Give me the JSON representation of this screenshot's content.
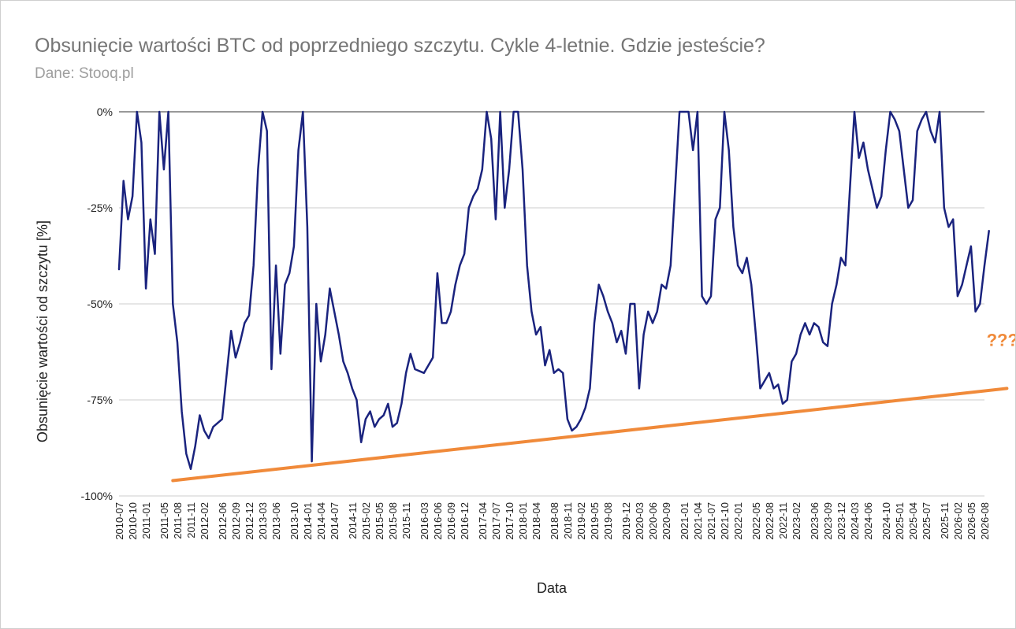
{
  "chart_data": {
    "type": "line",
    "title": "Obsunięcie wartości BTC od poprzedniego szczytu. Cykle 4-letnie. Gdzie jesteście?",
    "subtitle": "Dane: Stooq.pl",
    "xlabel": "Data",
    "ylabel": "Obsunięcie wartości od szczytu [%]",
    "ylim": [
      -100,
      0
    ],
    "y_ticks": [
      {
        "value": 0,
        "label": "0%"
      },
      {
        "value": -25,
        "label": "-25%"
      },
      {
        "value": -50,
        "label": "-50%"
      },
      {
        "value": -75,
        "label": "-75%"
      },
      {
        "value": -100,
        "label": "-100%"
      }
    ],
    "x_ticks": [
      "2010-07",
      "2010-10",
      "2011-01",
      "2011-05",
      "2011-08",
      "2011-11",
      "2012-02",
      "2012-06",
      "2012-09",
      "2012-12",
      "2013-03",
      "2013-06",
      "2013-10",
      "2014-01",
      "2014-04",
      "2014-07",
      "2014-11",
      "2015-02",
      "2015-05",
      "2015-08",
      "2015-11",
      "2016-03",
      "2016-06",
      "2016-09",
      "2016-12",
      "2017-04",
      "2017-07",
      "2017-10",
      "2018-01",
      "2018-04",
      "2018-08",
      "2018-11",
      "2019-02",
      "2019-05",
      "2019-08",
      "2019-12",
      "2020-03",
      "2020-06",
      "2020-09",
      "2021-01",
      "2021-04",
      "2021-07",
      "2021-10",
      "2022-01",
      "2022-05",
      "2022-08",
      "2022-11",
      "2023-02",
      "2023-06",
      "2023-09",
      "2023-12",
      "2024-03",
      "2024-06",
      "2024-10",
      "2025-01",
      "2025-04",
      "2025-07",
      "2025-11",
      "2026-02",
      "2026-05",
      "2026-08"
    ],
    "grid": true,
    "legend": "none",
    "series": [
      {
        "color": "#1a237e",
        "points": [
          [
            "2010-07",
            -41
          ],
          [
            "2010-08",
            -18
          ],
          [
            "2010-09",
            -28
          ],
          [
            "2010-10",
            -22
          ],
          [
            "2010-11",
            0
          ],
          [
            "2010-12",
            -8
          ],
          [
            "2011-01",
            -46
          ],
          [
            "2011-02",
            -28
          ],
          [
            "2011-03",
            -37
          ],
          [
            "2011-04",
            0
          ],
          [
            "2011-05",
            -15
          ],
          [
            "2011-06",
            0
          ],
          [
            "2011-07",
            -50
          ],
          [
            "2011-08",
            -60
          ],
          [
            "2011-09",
            -78
          ],
          [
            "2011-10",
            -89
          ],
          [
            "2011-11",
            -93
          ],
          [
            "2011-12",
            -87
          ],
          [
            "2012-01",
            -79
          ],
          [
            "2012-02",
            -83
          ],
          [
            "2012-03",
            -85
          ],
          [
            "2012-04",
            -82
          ],
          [
            "2012-06",
            -80
          ],
          [
            "2012-08",
            -57
          ],
          [
            "2012-09",
            -64
          ],
          [
            "2012-10",
            -60
          ],
          [
            "2012-11",
            -55
          ],
          [
            "2012-12",
            -53
          ],
          [
            "2013-01",
            -40
          ],
          [
            "2013-02",
            -15
          ],
          [
            "2013-03",
            0
          ],
          [
            "2013-04",
            -5
          ],
          [
            "2013-05",
            -67
          ],
          [
            "2013-06",
            -40
          ],
          [
            "2013-07",
            -63
          ],
          [
            "2013-08",
            -45
          ],
          [
            "2013-09",
            -42
          ],
          [
            "2013-10",
            -35
          ],
          [
            "2013-11",
            -10
          ],
          [
            "2013-12",
            0
          ],
          [
            "2014-01",
            -30
          ],
          [
            "2014-02",
            -91
          ],
          [
            "2014-03",
            -50
          ],
          [
            "2014-04",
            -65
          ],
          [
            "2014-05",
            -58
          ],
          [
            "2014-06",
            -46
          ],
          [
            "2014-07",
            -52
          ],
          [
            "2014-08",
            -58
          ],
          [
            "2014-09",
            -65
          ],
          [
            "2014-10",
            -68
          ],
          [
            "2014-11",
            -72
          ],
          [
            "2014-12",
            -75
          ],
          [
            "2015-01",
            -86
          ],
          [
            "2015-02",
            -80
          ],
          [
            "2015-03",
            -78
          ],
          [
            "2015-04",
            -82
          ],
          [
            "2015-05",
            -80
          ],
          [
            "2015-06",
            -79
          ],
          [
            "2015-07",
            -76
          ],
          [
            "2015-08",
            -82
          ],
          [
            "2015-09",
            -81
          ],
          [
            "2015-10",
            -76
          ],
          [
            "2015-11",
            -68
          ],
          [
            "2015-12",
            -63
          ],
          [
            "2016-01",
            -67
          ],
          [
            "2016-03",
            -68
          ],
          [
            "2016-05",
            -64
          ],
          [
            "2016-06",
            -42
          ],
          [
            "2016-07",
            -55
          ],
          [
            "2016-08",
            -55
          ],
          [
            "2016-09",
            -52
          ],
          [
            "2016-10",
            -45
          ],
          [
            "2016-11",
            -40
          ],
          [
            "2016-12",
            -37
          ],
          [
            "2017-01",
            -25
          ],
          [
            "2017-02",
            -22
          ],
          [
            "2017-03",
            -20
          ],
          [
            "2017-04",
            -15
          ],
          [
            "2017-05",
            0
          ],
          [
            "2017-06",
            -7
          ],
          [
            "2017-07",
            -28
          ],
          [
            "2017-08",
            0
          ],
          [
            "2017-09",
            -25
          ],
          [
            "2017-10",
            -15
          ],
          [
            "2017-11",
            0
          ],
          [
            "2017-12",
            0
          ],
          [
            "2018-01",
            -15
          ],
          [
            "2018-02",
            -40
          ],
          [
            "2018-03",
            -52
          ],
          [
            "2018-04",
            -58
          ],
          [
            "2018-05",
            -56
          ],
          [
            "2018-06",
            -66
          ],
          [
            "2018-07",
            -62
          ],
          [
            "2018-08",
            -68
          ],
          [
            "2018-09",
            -67
          ],
          [
            "2018-10",
            -68
          ],
          [
            "2018-11",
            -80
          ],
          [
            "2018-12",
            -83
          ],
          [
            "2019-01",
            -82
          ],
          [
            "2019-02",
            -80
          ],
          [
            "2019-03",
            -77
          ],
          [
            "2019-04",
            -72
          ],
          [
            "2019-05",
            -55
          ],
          [
            "2019-06",
            -45
          ],
          [
            "2019-07",
            -48
          ],
          [
            "2019-08",
            -52
          ],
          [
            "2019-09",
            -55
          ],
          [
            "2019-10",
            -60
          ],
          [
            "2019-11",
            -57
          ],
          [
            "2019-12",
            -63
          ],
          [
            "2020-01",
            -50
          ],
          [
            "2020-02",
            -50
          ],
          [
            "2020-03",
            -72
          ],
          [
            "2020-04",
            -58
          ],
          [
            "2020-05",
            -52
          ],
          [
            "2020-06",
            -55
          ],
          [
            "2020-07",
            -52
          ],
          [
            "2020-08",
            -45
          ],
          [
            "2020-09",
            -46
          ],
          [
            "2020-10",
            -40
          ],
          [
            "2020-11",
            -20
          ],
          [
            "2020-12",
            0
          ],
          [
            "2021-01",
            0
          ],
          [
            "2021-02",
            0
          ],
          [
            "2021-03",
            -10
          ],
          [
            "2021-04",
            0
          ],
          [
            "2021-05",
            -48
          ],
          [
            "2021-06",
            -50
          ],
          [
            "2021-07",
            -48
          ],
          [
            "2021-08",
            -28
          ],
          [
            "2021-09",
            -25
          ],
          [
            "2021-10",
            0
          ],
          [
            "2021-11",
            -10
          ],
          [
            "2021-12",
            -30
          ],
          [
            "2022-01",
            -40
          ],
          [
            "2022-02",
            -42
          ],
          [
            "2022-03",
            -38
          ],
          [
            "2022-04",
            -45
          ],
          [
            "2022-05",
            -58
          ],
          [
            "2022-06",
            -72
          ],
          [
            "2022-07",
            -70
          ],
          [
            "2022-08",
            -68
          ],
          [
            "2022-09",
            -72
          ],
          [
            "2022-10",
            -71
          ],
          [
            "2022-11",
            -76
          ],
          [
            "2022-12",
            -75
          ],
          [
            "2023-01",
            -65
          ],
          [
            "2023-02",
            -63
          ],
          [
            "2023-03",
            -58
          ],
          [
            "2023-04",
            -55
          ],
          [
            "2023-05",
            -58
          ],
          [
            "2023-06",
            -55
          ],
          [
            "2023-07",
            -56
          ],
          [
            "2023-08",
            -60
          ],
          [
            "2023-09",
            -61
          ],
          [
            "2023-10",
            -50
          ],
          [
            "2023-11",
            -45
          ],
          [
            "2023-12",
            -38
          ],
          [
            "2024-01",
            -40
          ],
          [
            "2024-02",
            -20
          ],
          [
            "2024-03",
            0
          ],
          [
            "2024-04",
            -12
          ],
          [
            "2024-05",
            -8
          ],
          [
            "2024-06",
            -15
          ],
          [
            "2024-07",
            -20
          ],
          [
            "2024-08",
            -25
          ],
          [
            "2024-09",
            -22
          ],
          [
            "2024-10",
            -10
          ],
          [
            "2024-11",
            0
          ],
          [
            "2024-12",
            -2
          ],
          [
            "2025-01",
            -5
          ],
          [
            "2025-02",
            -15
          ],
          [
            "2025-03",
            -25
          ],
          [
            "2025-04",
            -23
          ],
          [
            "2025-05",
            -5
          ],
          [
            "2025-06",
            -2
          ],
          [
            "2025-07",
            0
          ],
          [
            "2025-08",
            -5
          ],
          [
            "2025-09",
            -8
          ],
          [
            "2025-10",
            0
          ],
          [
            "2025-11",
            -25
          ],
          [
            "2025-12",
            -30
          ],
          [
            "2026-01",
            -28
          ],
          [
            "2026-02",
            -48
          ],
          [
            "2026-03",
            -45
          ],
          [
            "2026-04",
            -40
          ],
          [
            "2026-05",
            -35
          ],
          [
            "2026-06",
            -52
          ],
          [
            "2026-07",
            -50
          ],
          [
            "2026-08",
            -40
          ],
          [
            "2026-09",
            -31
          ]
        ]
      },
      {
        "color": "#f08a3a",
        "points": [
          [
            "2011-07",
            -96
          ],
          [
            "2027-01",
            -72
          ]
        ]
      }
    ],
    "annotations": [
      {
        "text": "???",
        "x": "2026-12",
        "y": -61
      }
    ]
  }
}
